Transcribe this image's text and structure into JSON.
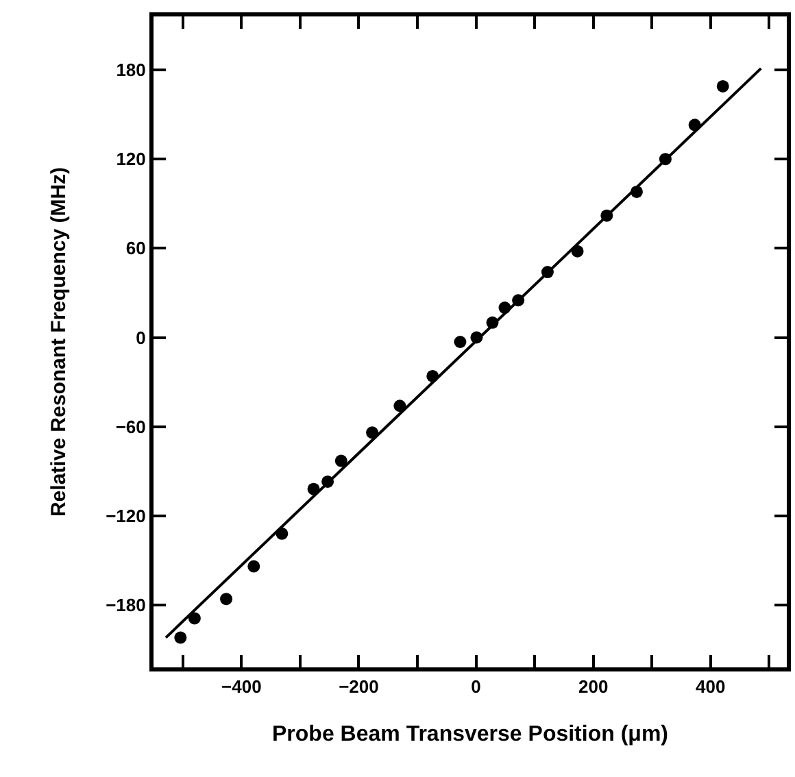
{
  "chart_data": {
    "type": "scatter",
    "xlabel": "Probe Beam Transverse Position (μm)",
    "ylabel": "Relative Resonant Frequency (MHz)",
    "xlim": [
      -550,
      530
    ],
    "ylim": [
      -222,
      216
    ],
    "xticks": [
      {
        "value": -500,
        "label": null
      },
      -400,
      {
        "value": -300,
        "label": null
      },
      -200,
      {
        "value": -100,
        "label": null
      },
      0,
      {
        "value": 100,
        "label": null
      },
      200,
      {
        "value": 300,
        "label": null
      },
      400,
      {
        "value": 500,
        "label": null
      }
    ],
    "yticks": [
      -180,
      -120,
      -60,
      0,
      60,
      120,
      180
    ],
    "grid": false,
    "legend": false,
    "marker": "circle",
    "series": [
      {
        "type": "scatter",
        "color": "#000000",
        "x": [
          -504,
          -480,
          -426,
          -379,
          -331,
          -277,
          -253,
          -230,
          -177,
          -130,
          -74,
          -27,
          1,
          28,
          49,
          72,
          122,
          173,
          223,
          274,
          323,
          373,
          421
        ],
        "values": [
          -202,
          -189,
          -176,
          -154,
          -132,
          -102,
          -97,
          -83,
          -64,
          -46,
          -26,
          -3,
          0,
          10,
          20,
          25,
          44,
          58,
          82,
          98,
          120,
          143,
          169
        ]
      },
      {
        "type": "line",
        "color": "#000000",
        "marker": "none",
        "line_style": "solid",
        "x": [
          -529,
          486
        ],
        "values": [
          -202,
          181
        ]
      }
    ]
  }
}
